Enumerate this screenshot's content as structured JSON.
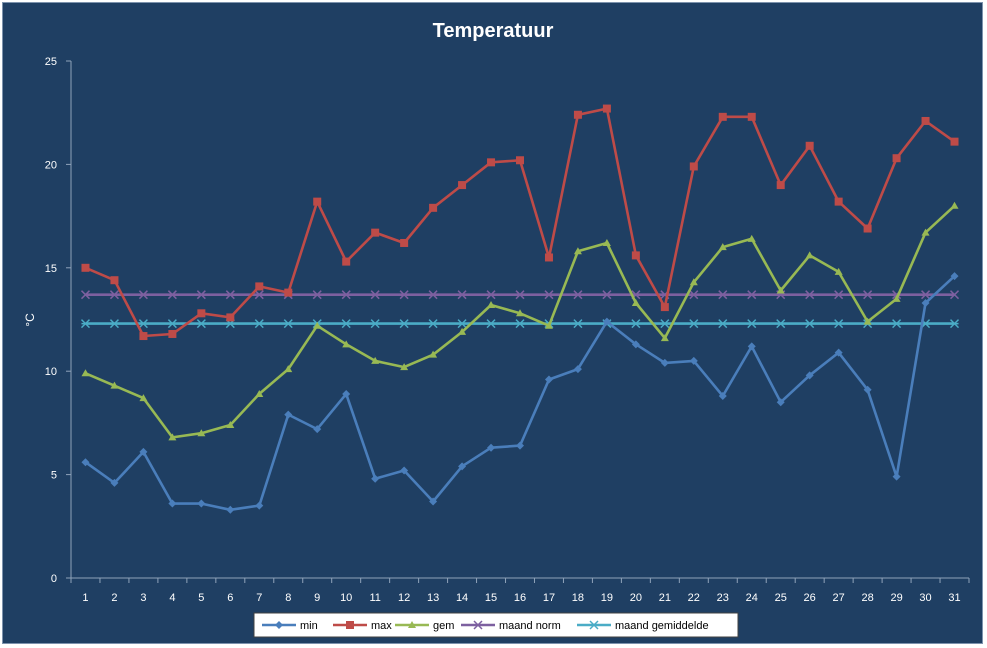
{
  "chart_data": {
    "type": "line",
    "title": "Temperatuur",
    "xlabel": "",
    "ylabel": "°C",
    "x": [
      1,
      2,
      3,
      4,
      5,
      6,
      7,
      8,
      9,
      10,
      11,
      12,
      13,
      14,
      15,
      16,
      17,
      18,
      19,
      20,
      21,
      22,
      23,
      24,
      25,
      26,
      27,
      28,
      29,
      30,
      31
    ],
    "ylim": [
      0,
      25
    ],
    "yticks": [
      0,
      5,
      10,
      15,
      20,
      25
    ],
    "grid": false,
    "legend_position": "bottom",
    "series": [
      {
        "name": "min",
        "color": "#4a7ebb",
        "marker": "diamond",
        "values": [
          5.6,
          4.6,
          6.1,
          3.6,
          3.6,
          3.3,
          3.5,
          7.9,
          7.2,
          8.9,
          4.8,
          5.2,
          3.7,
          5.4,
          6.3,
          6.4,
          9.6,
          10.1,
          12.4,
          11.3,
          10.4,
          10.5,
          8.8,
          11.2,
          8.5,
          9.8,
          10.9,
          9.1,
          4.9,
          13.3,
          14.6
        ]
      },
      {
        "name": "max",
        "color": "#be4b48",
        "marker": "square",
        "values": [
          15.0,
          14.4,
          11.7,
          11.8,
          12.8,
          12.6,
          14.1,
          13.8,
          18.2,
          15.3,
          16.7,
          16.2,
          17.9,
          19.0,
          20.1,
          20.2,
          15.5,
          22.4,
          22.7,
          15.6,
          13.1,
          19.9,
          22.3,
          22.3,
          19.0,
          20.9,
          18.2,
          16.9,
          20.3,
          22.1,
          21.1
        ]
      },
      {
        "name": "gem",
        "color": "#98b954",
        "marker": "triangle",
        "values": [
          9.9,
          9.3,
          8.7,
          6.8,
          7.0,
          7.4,
          8.9,
          10.1,
          12.2,
          11.3,
          10.5,
          10.2,
          10.8,
          11.9,
          13.2,
          12.8,
          12.2,
          15.8,
          16.2,
          13.3,
          11.6,
          14.3,
          16.0,
          16.4,
          13.9,
          15.6,
          14.8,
          12.4,
          13.5,
          16.7,
          18.0
        ]
      },
      {
        "name": "maand norm",
        "color": "#7d60a0",
        "marker": "x",
        "values": [
          13.7,
          13.7,
          13.7,
          13.7,
          13.7,
          13.7,
          13.7,
          13.7,
          13.7,
          13.7,
          13.7,
          13.7,
          13.7,
          13.7,
          13.7,
          13.7,
          13.7,
          13.7,
          13.7,
          13.7,
          13.7,
          13.7,
          13.7,
          13.7,
          13.7,
          13.7,
          13.7,
          13.7,
          13.7,
          13.7,
          13.7
        ]
      },
      {
        "name": "maand gemiddelde",
        "color": "#4bacc6",
        "marker": "star",
        "values": [
          12.3,
          12.3,
          12.3,
          12.3,
          12.3,
          12.3,
          12.3,
          12.3,
          12.3,
          12.3,
          12.3,
          12.3,
          12.3,
          12.3,
          12.3,
          12.3,
          12.3,
          12.3,
          12.3,
          12.3,
          12.3,
          12.3,
          12.3,
          12.3,
          12.3,
          12.3,
          12.3,
          12.3,
          12.3,
          12.3,
          12.3
        ]
      }
    ]
  }
}
